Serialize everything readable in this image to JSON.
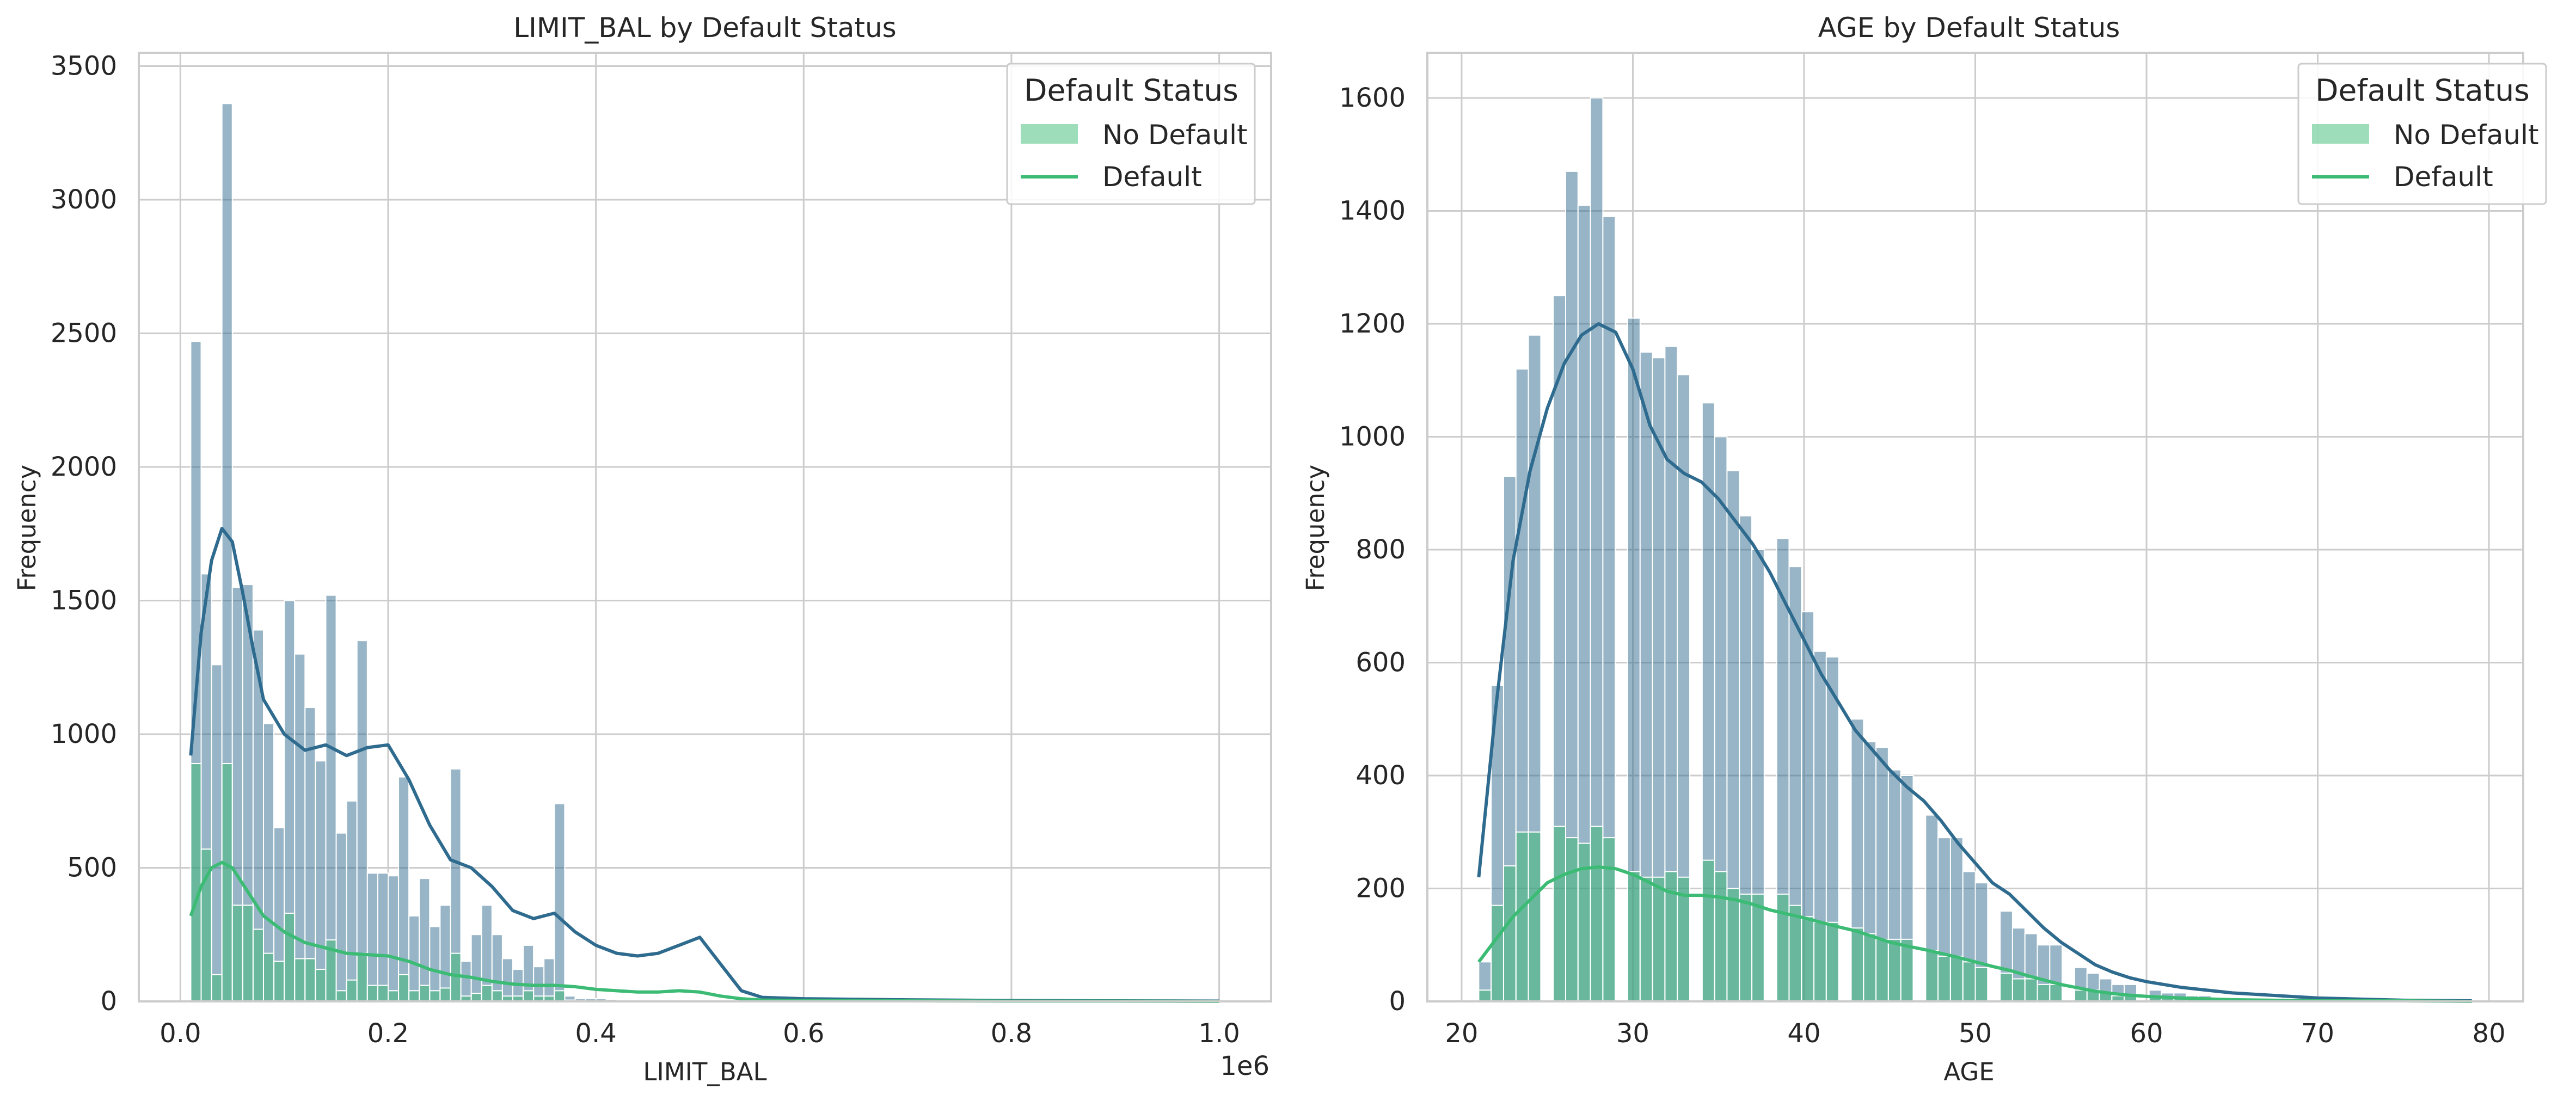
{
  "colors": {
    "no_default": "#2f6b8e",
    "default": "#3cbb75",
    "grid": "#cccccc",
    "spine": "#cccccc"
  },
  "chart_data": [
    {
      "type": "histogram",
      "title": "LIMIT_BAL by Default Status",
      "xlabel": "LIMIT_BAL",
      "ylabel": "Frequency",
      "x_offset_label": "1e6",
      "xlim": [
        -40000,
        1050000
      ],
      "ylim": [
        0,
        3550
      ],
      "xticks": [
        0,
        200000,
        400000,
        600000,
        800000,
        1000000
      ],
      "xtick_labels": [
        "0.0",
        "0.2",
        "0.4",
        "0.6",
        "0.8",
        "1.0"
      ],
      "yticks": [
        0,
        500,
        1000,
        1500,
        2000,
        2500,
        3000,
        3500
      ],
      "grid": true,
      "legend": {
        "title": "Default Status",
        "entries": [
          "No Default",
          "Default"
        ],
        "placement": "top-right"
      },
      "bin_width": 10000,
      "x_start": 10000,
      "series": [
        {
          "name": "No Default",
          "style": "bars",
          "values": [
            2470,
            1600,
            1260,
            3360,
            1550,
            1560,
            1390,
            1040,
            650,
            1500,
            1300,
            1100,
            900,
            1520,
            630,
            750,
            1350,
            480,
            480,
            470,
            840,
            320,
            460,
            280,
            360,
            870,
            150,
            250,
            360,
            250,
            160,
            120,
            210,
            130,
            160,
            740,
            20,
            10,
            10,
            10,
            8,
            6,
            4,
            3,
            2,
            2,
            1,
            1,
            1,
            1,
            1,
            0,
            0,
            0,
            0,
            0,
            0,
            0,
            0,
            0,
            0,
            0,
            0,
            0,
            0,
            0,
            0,
            0,
            0,
            0,
            0,
            0,
            0,
            0,
            0,
            0,
            0,
            0,
            0,
            0,
            0,
            0,
            0,
            0,
            0,
            0,
            0,
            0,
            0,
            0,
            0,
            0
          ]
        },
        {
          "name": "Default",
          "style": "bars",
          "values": [
            890,
            570,
            100,
            890,
            360,
            360,
            270,
            180,
            150,
            330,
            160,
            160,
            120,
            230,
            40,
            80,
            180,
            60,
            60,
            40,
            100,
            40,
            60,
            40,
            50,
            180,
            20,
            30,
            60,
            40,
            20,
            20,
            40,
            20,
            20,
            40,
            5,
            3,
            2,
            2,
            1,
            1,
            1,
            0,
            0,
            0,
            0,
            0,
            0,
            0,
            0,
            0,
            0,
            0,
            0,
            0,
            0,
            0,
            0,
            0,
            0,
            0,
            0,
            0,
            0,
            0,
            0,
            0,
            0,
            0,
            0,
            0,
            0,
            0,
            0,
            0,
            0,
            0,
            0,
            0,
            0,
            0,
            0,
            0,
            0,
            0,
            0,
            0,
            0,
            0,
            0
          ]
        },
        {
          "name": "No Default KDE",
          "style": "kde",
          "x": [
            10000,
            20000,
            30000,
            40000,
            50000,
            60000,
            70000,
            80000,
            100000,
            120000,
            140000,
            160000,
            180000,
            200000,
            220000,
            240000,
            260000,
            280000,
            300000,
            320000,
            340000,
            360000,
            380000,
            400000,
            420000,
            440000,
            460000,
            480000,
            500000,
            520000,
            540000,
            560000,
            600000,
            700000,
            800000,
            900000,
            1000000
          ],
          "values": [
            920,
            1380,
            1650,
            1770,
            1720,
            1530,
            1320,
            1130,
            1000,
            940,
            960,
            920,
            950,
            960,
            830,
            660,
            530,
            500,
            430,
            340,
            310,
            330,
            260,
            210,
            180,
            170,
            180,
            210,
            240,
            140,
            40,
            15,
            10,
            6,
            3,
            2,
            1
          ]
        },
        {
          "name": "Default KDE",
          "style": "kde",
          "x": [
            10000,
            20000,
            30000,
            40000,
            50000,
            60000,
            70000,
            80000,
            100000,
            120000,
            140000,
            160000,
            180000,
            200000,
            220000,
            240000,
            260000,
            280000,
            300000,
            320000,
            340000,
            360000,
            380000,
            400000,
            420000,
            440000,
            460000,
            480000,
            500000,
            520000,
            540000,
            560000,
            600000,
            700000,
            800000,
            900000,
            1000000
          ],
          "values": [
            320,
            430,
            500,
            520,
            500,
            440,
            380,
            320,
            260,
            220,
            200,
            180,
            175,
            170,
            150,
            120,
            100,
            90,
            75,
            65,
            60,
            60,
            55,
            45,
            40,
            35,
            35,
            40,
            35,
            20,
            10,
            5,
            3,
            2,
            1,
            1,
            0
          ]
        }
      ]
    },
    {
      "type": "histogram",
      "title": "AGE by Default Status",
      "xlabel": "AGE",
      "ylabel": "Frequency",
      "xlim": [
        18,
        82
      ],
      "ylim": [
        0,
        1680
      ],
      "xticks": [
        20,
        30,
        40,
        50,
        60,
        70,
        80
      ],
      "xtick_labels": [
        "20",
        "30",
        "40",
        "50",
        "60",
        "70",
        "80"
      ],
      "yticks": [
        0,
        200,
        400,
        600,
        800,
        1000,
        1200,
        1400,
        1600
      ],
      "grid": true,
      "legend": {
        "title": "Default Status",
        "entries": [
          "No Default",
          "Default"
        ],
        "placement": "top-right"
      },
      "bin_width": 0.725,
      "x_start": 21,
      "series": [
        {
          "name": "No Default",
          "style": "bars",
          "values": [
            70,
            560,
            930,
            1120,
            1180,
            0,
            1250,
            1470,
            1410,
            1600,
            1390,
            0,
            1210,
            1150,
            1140,
            1160,
            1110,
            0,
            1060,
            1000,
            940,
            860,
            800,
            0,
            820,
            770,
            690,
            620,
            610,
            0,
            500,
            460,
            450,
            410,
            400,
            0,
            330,
            290,
            290,
            230,
            210,
            0,
            160,
            130,
            120,
            100,
            100,
            0,
            60,
            50,
            40,
            30,
            30,
            0,
            20,
            15,
            15,
            10,
            10,
            5,
            5,
            5,
            3,
            3,
            2,
            2,
            1,
            1,
            1,
            1,
            1,
            1,
            1,
            1,
            1,
            1,
            1,
            1,
            1,
            1
          ]
        },
        {
          "name": "Default",
          "style": "bars",
          "values": [
            20,
            170,
            240,
            300,
            300,
            0,
            310,
            290,
            280,
            310,
            290,
            0,
            230,
            220,
            220,
            230,
            220,
            0,
            250,
            230,
            200,
            190,
            190,
            0,
            190,
            170,
            150,
            140,
            140,
            0,
            130,
            120,
            110,
            110,
            110,
            0,
            90,
            80,
            80,
            70,
            60,
            0,
            50,
            40,
            40,
            30,
            30,
            0,
            20,
            20,
            15,
            10,
            10,
            0,
            10,
            5,
            5,
            5,
            5,
            5,
            5,
            3,
            2,
            2,
            1,
            1,
            1,
            1,
            1,
            1,
            1,
            1,
            1,
            1,
            1,
            1,
            1,
            1,
            1,
            1
          ]
        },
        {
          "name": "No Default KDE",
          "style": "kde",
          "x": [
            21,
            22,
            23,
            24,
            25,
            26,
            27,
            28,
            29,
            30,
            31,
            32,
            33,
            34,
            35,
            36,
            37,
            38,
            39,
            40,
            41,
            42,
            43,
            44,
            45,
            46,
            47,
            48,
            49,
            50,
            51,
            52,
            53,
            54,
            55,
            56,
            57,
            58,
            59,
            60,
            62,
            65,
            70,
            75,
            79
          ],
          "values": [
            220,
            520,
            780,
            940,
            1050,
            1130,
            1180,
            1200,
            1185,
            1120,
            1020,
            960,
            935,
            920,
            890,
            850,
            810,
            760,
            700,
            640,
            580,
            530,
            480,
            445,
            410,
            380,
            355,
            320,
            280,
            245,
            210,
            190,
            160,
            130,
            105,
            85,
            65,
            52,
            42,
            35,
            25,
            15,
            6,
            2,
            1
          ]
        },
        {
          "name": "Default KDE",
          "style": "kde",
          "x": [
            21,
            22,
            23,
            24,
            25,
            26,
            27,
            28,
            29,
            30,
            31,
            32,
            33,
            34,
            35,
            36,
            37,
            38,
            39,
            40,
            41,
            42,
            43,
            44,
            45,
            46,
            47,
            48,
            49,
            50,
            51,
            52,
            53,
            54,
            55,
            56,
            57,
            58,
            59,
            60,
            62,
            65,
            70,
            75,
            79
          ],
          "values": [
            70,
            110,
            150,
            180,
            210,
            225,
            235,
            238,
            235,
            225,
            210,
            195,
            188,
            188,
            185,
            180,
            172,
            162,
            155,
            148,
            140,
            132,
            125,
            115,
            105,
            98,
            92,
            85,
            78,
            70,
            62,
            55,
            46,
            38,
            30,
            24,
            18,
            14,
            11,
            9,
            6,
            3,
            1,
            1,
            0
          ]
        }
      ]
    }
  ]
}
